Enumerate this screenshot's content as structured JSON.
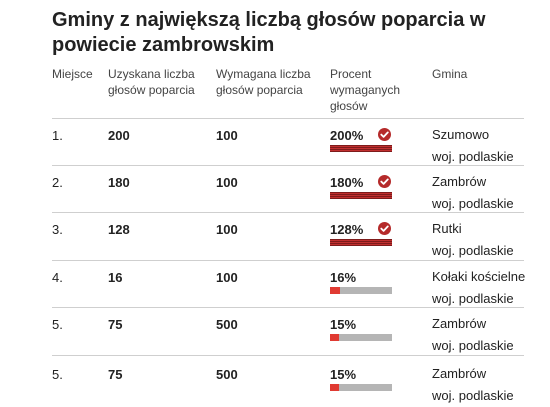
{
  "title": "Gminy z największą liczbą głosów poparcia w powiecie zambrowskim",
  "headers": {
    "place": "Miejsce",
    "obtained": "Uzyskana liczba głosów poparcia",
    "required": "Wymagana liczba głosów poparcia",
    "percent": "Procent wymaganych głosów",
    "gmina": "Gmina"
  },
  "colors": {
    "fill": "#e03a32",
    "fill_over": "#b52a2a",
    "track": "#b5b5b5"
  },
  "rows": [
    {
      "place": "1.",
      "obtained": "200",
      "required": "100",
      "percent_label": "200%",
      "percent": 200,
      "check": true,
      "gmina": "Szumowo",
      "region": "woj. podlaskie"
    },
    {
      "place": "2.",
      "obtained": "180",
      "required": "100",
      "percent_label": "180%",
      "percent": 180,
      "check": true,
      "gmina": "Zambrów",
      "region": "woj. podlaskie"
    },
    {
      "place": "3.",
      "obtained": "128",
      "required": "100",
      "percent_label": "128%",
      "percent": 128,
      "check": true,
      "gmina": "Rutki",
      "region": "woj. podlaskie"
    },
    {
      "place": "4.",
      "obtained": "16",
      "required": "100",
      "percent_label": "16%",
      "percent": 16,
      "check": false,
      "gmina": "Kołaki kościelne",
      "region": "woj. podlaskie"
    },
    {
      "place": "5.",
      "obtained": "75",
      "required": "500",
      "percent_label": "15%",
      "percent": 15,
      "check": false,
      "gmina": "Zambrów",
      "region": "woj. podlaskie"
    },
    {
      "place": "5.",
      "obtained": "75",
      "required": "500",
      "percent_label": "15%",
      "percent": 15,
      "check": false,
      "gmina": "Zambrów",
      "region": "woj. podlaskie"
    }
  ]
}
